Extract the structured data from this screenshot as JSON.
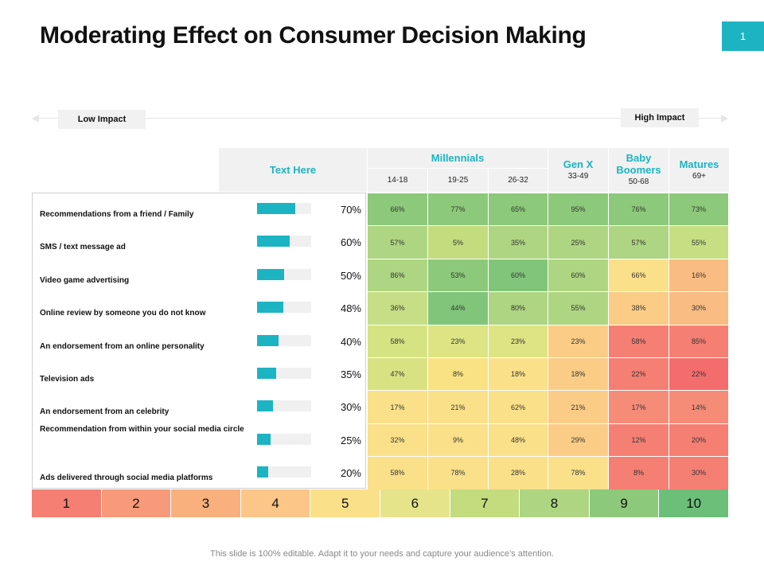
{
  "title": "Moderating Effect on Consumer Decision Making",
  "page_number": "1",
  "impact": {
    "low": "Low Impact",
    "high": "High Impact"
  },
  "header": {
    "text_here": "Text Here",
    "millennials": "Millennials",
    "millennials_ages": [
      "14-18",
      "19-25",
      "26-32"
    ],
    "gen_x": "Gen X",
    "gen_x_age": "33-49",
    "baby_boomers": "Baby Boomers",
    "baby_boomers_age": "50-68",
    "matures": "Matures",
    "matures_age": "69+"
  },
  "rows": [
    {
      "label": "Recommendations from a friend / Family",
      "percent": "70%",
      "value": 70,
      "cells": [
        "66%",
        "77%",
        "65%",
        "95%",
        "76%",
        "73%"
      ]
    },
    {
      "label": "SMS / text message ad",
      "percent": "60%",
      "value": 60,
      "cells": [
        "57%",
        "5%",
        "35%",
        "25%",
        "57%",
        "55%"
      ]
    },
    {
      "label": "Video game advertising",
      "percent": "50%",
      "value": 50,
      "cells": [
        "86%",
        "53%",
        "60%",
        "60%",
        "66%",
        "16%"
      ]
    },
    {
      "label": "Online review by someone you do not know",
      "percent": "48%",
      "value": 48,
      "cells": [
        "36%",
        "44%",
        "80%",
        "55%",
        "38%",
        "30%"
      ]
    },
    {
      "label": "An endorsement from an online personality",
      "percent": "40%",
      "value": 40,
      "cells": [
        "58%",
        "23%",
        "23%",
        "23%",
        "58%",
        "85%"
      ]
    },
    {
      "label": "Television ads",
      "percent": "35%",
      "value": 35,
      "cells": [
        "47%",
        "8%",
        "18%",
        "18%",
        "22%",
        "22%"
      ]
    },
    {
      "label": "An endorsement from an celebrity",
      "percent": "30%",
      "value": 30,
      "cells": [
        "17%",
        "21%",
        "62%",
        "21%",
        "17%",
        "14%"
      ]
    },
    {
      "label": "Recommendation from within your social media circle",
      "percent": "25%",
      "value": 25,
      "cells": [
        "32%",
        "9%",
        "48%",
        "29%",
        "12%",
        "20%"
      ]
    },
    {
      "label": "Ads delivered through social media platforms",
      "percent": "20%",
      "value": 20,
      "cells": [
        "58%",
        "78%",
        "28%",
        "78%",
        "8%",
        "30%"
      ]
    }
  ],
  "heat_colors": [
    [
      "#8cc97a",
      "#8cc97a",
      "#8cc97a",
      "#8cc97a",
      "#8cc97a",
      "#8cc97a"
    ],
    [
      "#aed581",
      "#c2dc7e",
      "#aed581",
      "#aed581",
      "#aed581",
      "#c5df82"
    ],
    [
      "#aed581",
      "#8cc97a",
      "#80c57a",
      "#aed581",
      "#fbe08a",
      "#f9bc82"
    ],
    [
      "#c6de85",
      "#80c57a",
      "#aed581",
      "#aed581",
      "#fbcc86",
      "#f9bc82"
    ],
    [
      "#d6e383",
      "#dde483",
      "#dde483",
      "#fbcc86",
      "#f57f73",
      "#f57f73"
    ],
    [
      "#d8e283",
      "#f8e283",
      "#fbe08a",
      "#fbcc86",
      "#f57f73",
      "#f36d6d"
    ],
    [
      "#fbe08a",
      "#fbe08a",
      "#fbe08a",
      "#fbcc86",
      "#f58c78",
      "#f58c78"
    ],
    [
      "#fbe08a",
      "#fbe08a",
      "#fbe08a",
      "#fbcc86",
      "#f57f73",
      "#f57f73"
    ],
    [
      "#fbe08a",
      "#fbe08a",
      "#fbe08a",
      "#fbe08a",
      "#f57f73",
      "#f57f73"
    ]
  ],
  "scale": {
    "labels": [
      "1",
      "2",
      "3",
      "4",
      "5",
      "6",
      "7",
      "8",
      "9",
      "10"
    ],
    "colors": [
      "#f57f73",
      "#f79a7a",
      "#f9b07d",
      "#fbc687",
      "#fbe08a",
      "#e6e48b",
      "#c2dc7e",
      "#aed581",
      "#8cc97a",
      "#6cbf78"
    ]
  },
  "footer": "This slide is 100% editable. Adapt it to your needs and capture your audience's attention."
}
